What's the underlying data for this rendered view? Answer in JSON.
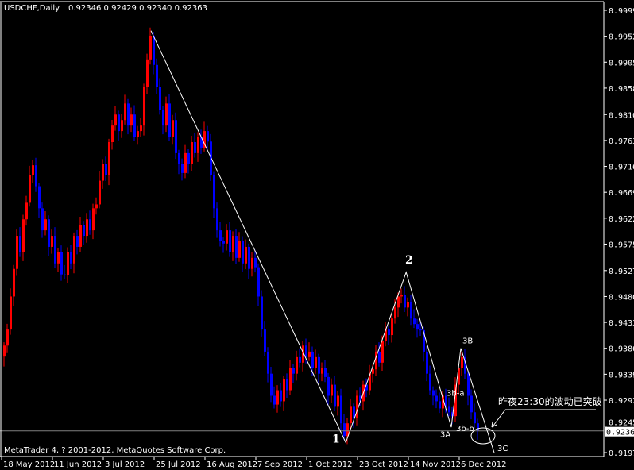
{
  "chart_data": {
    "type": "candlestick",
    "title": "USDCHF,Daily",
    "ohlc_readout": "0.92346 0.92429 0.92340 0.92363",
    "copyright": "MetaTrader 4, ? 2001-2012, MetaQuotes Software Corp.",
    "colors": {
      "background": "#000000",
      "bull": "#ff0000",
      "bear": "#0000ff",
      "lines": "#ffffff",
      "price_line": "#808080",
      "text": "#ffffff"
    },
    "ylim": [
      0.9197,
      0.9999
    ],
    "y_ticks": [
      "0.99990",
      "0.99520",
      "0.99050",
      "0.98580",
      "0.98100",
      "0.97630",
      "0.97160",
      "0.96690",
      "0.96220",
      "0.95750",
      "0.95270",
      "0.94800",
      "0.94330",
      "0.93860",
      "0.93390",
      "0.92920",
      "0.92450",
      "0.91970"
    ],
    "current_price": "0.92363",
    "x_ticks": [
      {
        "label": "18 May 2012",
        "bar": 0
      },
      {
        "label": "11 Jun 2012",
        "bar": 16
      },
      {
        "label": "3 Jul 2012",
        "bar": 32
      },
      {
        "label": "25 Jul 2012",
        "bar": 48
      },
      {
        "label": "16 Aug 2012",
        "bar": 64
      },
      {
        "label": "7 Sep 2012",
        "bar": 80
      },
      {
        "label": "1 Oct 2012",
        "bar": 96
      },
      {
        "label": "23 Oct 2012",
        "bar": 112
      },
      {
        "label": "14 Nov 2012",
        "bar": 128
      },
      {
        "label": "6 Dec 2012",
        "bar": 144
      }
    ],
    "closes": [
      0.9391,
      0.942,
      0.948,
      0.953,
      0.959,
      0.956,
      0.962,
      0.965,
      0.97,
      0.9718,
      0.968,
      0.964,
      0.96,
      0.962,
      0.957,
      0.959,
      0.954,
      0.956,
      0.952,
      0.9519,
      0.956,
      0.954,
      0.959,
      0.957,
      0.961,
      0.959,
      0.962,
      0.96,
      0.964,
      0.9647,
      0.969,
      0.972,
      0.97,
      0.976,
      0.979,
      0.981,
      0.978,
      0.98,
      0.983,
      0.979,
      0.981,
      0.977,
      0.978,
      0.979,
      0.986,
      0.991,
      0.9953,
      0.99,
      0.986,
      0.9818,
      0.979,
      0.983,
      0.977,
      0.98,
      0.974,
      0.972,
      0.9704,
      0.974,
      0.972,
      0.976,
      0.974,
      0.977,
      0.975,
      0.978,
      0.9761,
      0.97,
      0.964,
      0.96,
      0.958,
      0.9576,
      0.96,
      0.956,
      0.959,
      0.955,
      0.958,
      0.954,
      0.957,
      0.953,
      0.955,
      0.9533,
      0.948,
      0.942,
      0.938,
      0.934,
      0.93,
      0.9284,
      0.931,
      0.929,
      0.933,
      0.931,
      0.935,
      0.934,
      0.937,
      0.936,
      0.9391,
      0.937,
      0.938,
      0.935,
      0.937,
      0.934,
      0.935,
      0.9334,
      0.93,
      0.932,
      0.928,
      0.93,
      0.925,
      0.9227,
      0.925,
      0.928,
      0.926,
      0.93,
      0.929,
      0.932,
      0.931,
      0.934,
      0.9348,
      0.938,
      0.936,
      0.94,
      0.942,
      0.941,
      0.944,
      0.946,
      0.948,
      0.9483,
      0.946,
      0.947,
      0.944,
      0.943,
      0.942,
      0.9419,
      0.938,
      0.934,
      0.931,
      0.93,
      0.929,
      0.9277,
      0.93,
      0.928,
      0.927,
      0.9263,
      0.932,
      0.935,
      0.937,
      0.934,
      0.93,
      0.927,
      0.925,
      0.9236
    ],
    "wave_points": [
      {
        "bar": 46.5,
        "price": 0.9962
      },
      {
        "bar": 107.8,
        "price": 0.9215
      },
      {
        "bar": 126.8,
        "price": 0.9524
      },
      {
        "bar": 141,
        "price": 0.9243
      },
      {
        "bar": 144,
        "price": 0.9386
      },
      {
        "bar": 154.5,
        "price": 0.9197
      }
    ],
    "wave_labels": [
      {
        "text": "1",
        "bar": 103.5,
        "price": 0.9215
      },
      {
        "text": "2",
        "bar": 126.5,
        "price": 0.954
      },
      {
        "text": "3B",
        "bar": 144.5,
        "price": 0.9395
      },
      {
        "text": "3b-a",
        "bar": 139.5,
        "price": 0.93
      },
      {
        "text": "3A",
        "bar": 137.5,
        "price": 0.9225
      },
      {
        "text": "3b-b",
        "bar": 142.5,
        "price": 0.9236
      },
      {
        "text": "3C",
        "bar": 155.5,
        "price": 0.92
      }
    ],
    "annotation": "昨夜23:30的波动已突破"
  }
}
